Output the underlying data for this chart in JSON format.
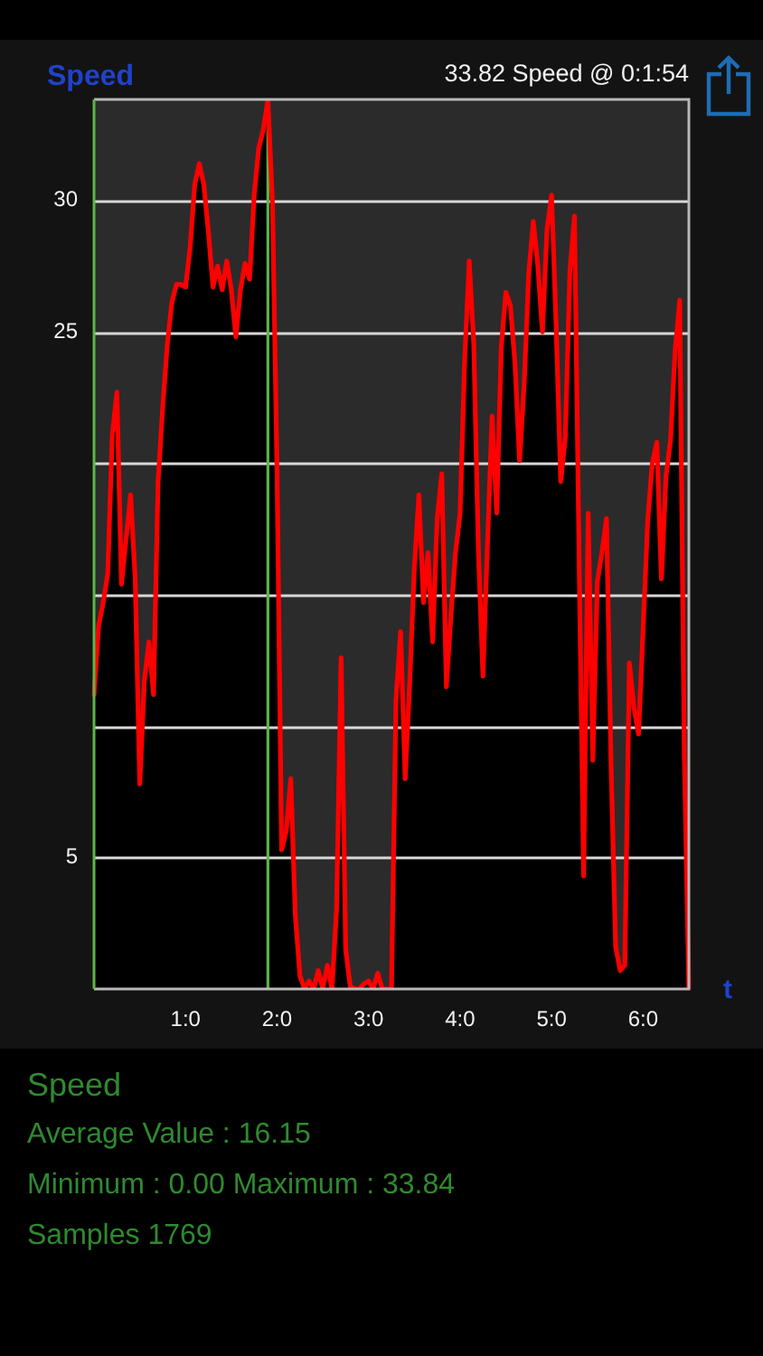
{
  "chart_data": {
    "type": "area",
    "title": "Speed",
    "xlabel": "t",
    "categories": [
      null,
      null,
      null,
      null,
      null,
      null,
      null,
      null,
      null,
      null,
      null,
      null,
      null,
      null,
      null,
      null,
      null,
      null,
      null,
      null,
      "1:0",
      null,
      null,
      null,
      null,
      null,
      null,
      null,
      null,
      null,
      null,
      null,
      null,
      null,
      null,
      null,
      null,
      null,
      null,
      null,
      "2:0",
      null,
      null,
      null,
      null,
      null,
      null,
      null,
      null,
      null,
      null,
      null,
      null,
      null,
      null,
      null,
      null,
      null,
      null,
      null,
      "3:0",
      null,
      null,
      null,
      null,
      null,
      null,
      null,
      null,
      null,
      null,
      null,
      null,
      null,
      null,
      null,
      null,
      null,
      null,
      null,
      "4:0",
      null,
      null,
      null,
      null,
      null,
      null,
      null,
      null,
      null,
      null,
      null,
      null,
      null,
      null,
      null,
      null,
      null,
      null,
      null,
      "5:0",
      null,
      null,
      null,
      null,
      null,
      null,
      null,
      null,
      null,
      null,
      null,
      null,
      null,
      null,
      null,
      null,
      null,
      null,
      null,
      "6:0",
      null,
      null,
      null,
      null,
      null,
      null,
      null,
      null,
      null,
      null
    ],
    "series": [
      {
        "color": "#ff0000",
        "values": [
          11.2,
          13.8,
          14.7,
          15.8,
          21.1,
          22.7,
          15.4,
          17.1,
          18.8,
          15.6,
          7.8,
          11.7,
          13.2,
          11.2,
          19.3,
          22.1,
          24.5,
          26.1,
          26.8,
          26.8,
          26.7,
          28.2,
          30.6,
          31.4,
          30.6,
          28.8,
          26.7,
          27.5,
          26.6,
          27.7,
          26.6,
          24.8,
          26.6,
          27.6,
          27.0,
          30.2,
          32.0,
          32.7,
          33.82,
          29.9,
          19.7,
          5.3,
          6.0,
          8.0,
          2.8,
          0.5,
          0,
          0.3,
          0,
          0.7,
          0,
          0.9,
          0,
          3.0,
          12.6,
          1.5,
          0.1,
          0,
          0,
          0.2,
          0.3,
          0,
          0.6,
          0,
          0,
          0,
          11.0,
          13.6,
          8.0,
          11.7,
          16.0,
          18.8,
          14.7,
          16.6,
          13.2,
          17.9,
          19.6,
          11.5,
          14.2,
          16.6,
          18.1,
          23.9,
          27.7,
          24.5,
          16.7,
          11.9,
          17.0,
          21.8,
          18.1,
          24.4,
          26.5,
          26.0,
          23.8,
          20.1,
          23.0,
          27.2,
          29.2,
          27.5,
          25.0,
          28.9,
          30.2,
          25.2,
          19.3,
          21.0,
          27.3,
          29.4,
          16.6,
          4.3,
          18.1,
          8.7,
          15.5,
          16.6,
          17.9,
          8.5,
          1.6,
          0.7,
          0.9,
          12.4,
          10.7,
          9.7,
          13.7,
          17.8,
          20.0,
          20.8,
          15.6,
          19.5,
          20.9,
          24.3,
          26.2,
          9.0,
          0
        ]
      }
    ],
    "ylim": [
      0,
      33.84
    ],
    "yticks": [
      5,
      {
        "value": 10,
        "label": null
      },
      {
        "value": 15,
        "label": null
      },
      {
        "value": 20,
        "label": null
      },
      25,
      30
    ],
    "grid": "y",
    "annotations": [
      "33.82 Speed @ 0:1:54",
      "Speed",
      "Average Value : 16.15",
      "Minimum : 0.00 Maximum : 33.84",
      "Samples 1769"
    ]
  }
}
